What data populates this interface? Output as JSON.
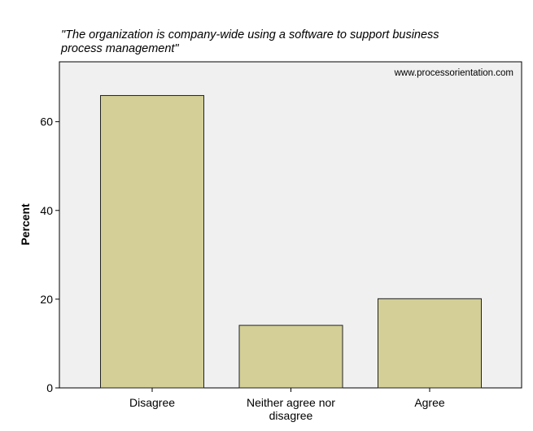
{
  "title_lines": [
    "\"The organization is company-wide using a software to support business",
    "process management\""
  ],
  "watermark": "www.processorientation.com",
  "chart_data": {
    "type": "bar",
    "categories": [
      "Disagree",
      "Neither agree nor disagree",
      "Agree"
    ],
    "category_label_lines": [
      [
        "Disagree"
      ],
      [
        "Neither agree nor",
        "disagree"
      ],
      [
        "Agree"
      ]
    ],
    "values": [
      65.9,
      14.1,
      20.1
    ],
    "ylabel": "Percent",
    "xlabel": "",
    "ylim": [
      0,
      73.5
    ],
    "yticks": [
      0,
      20,
      40,
      60
    ],
    "grid": false,
    "colors": {
      "bar_fill": "#d3cf96",
      "bar_stroke": "#222222",
      "plot_bg": "#f0f0f0"
    }
  }
}
